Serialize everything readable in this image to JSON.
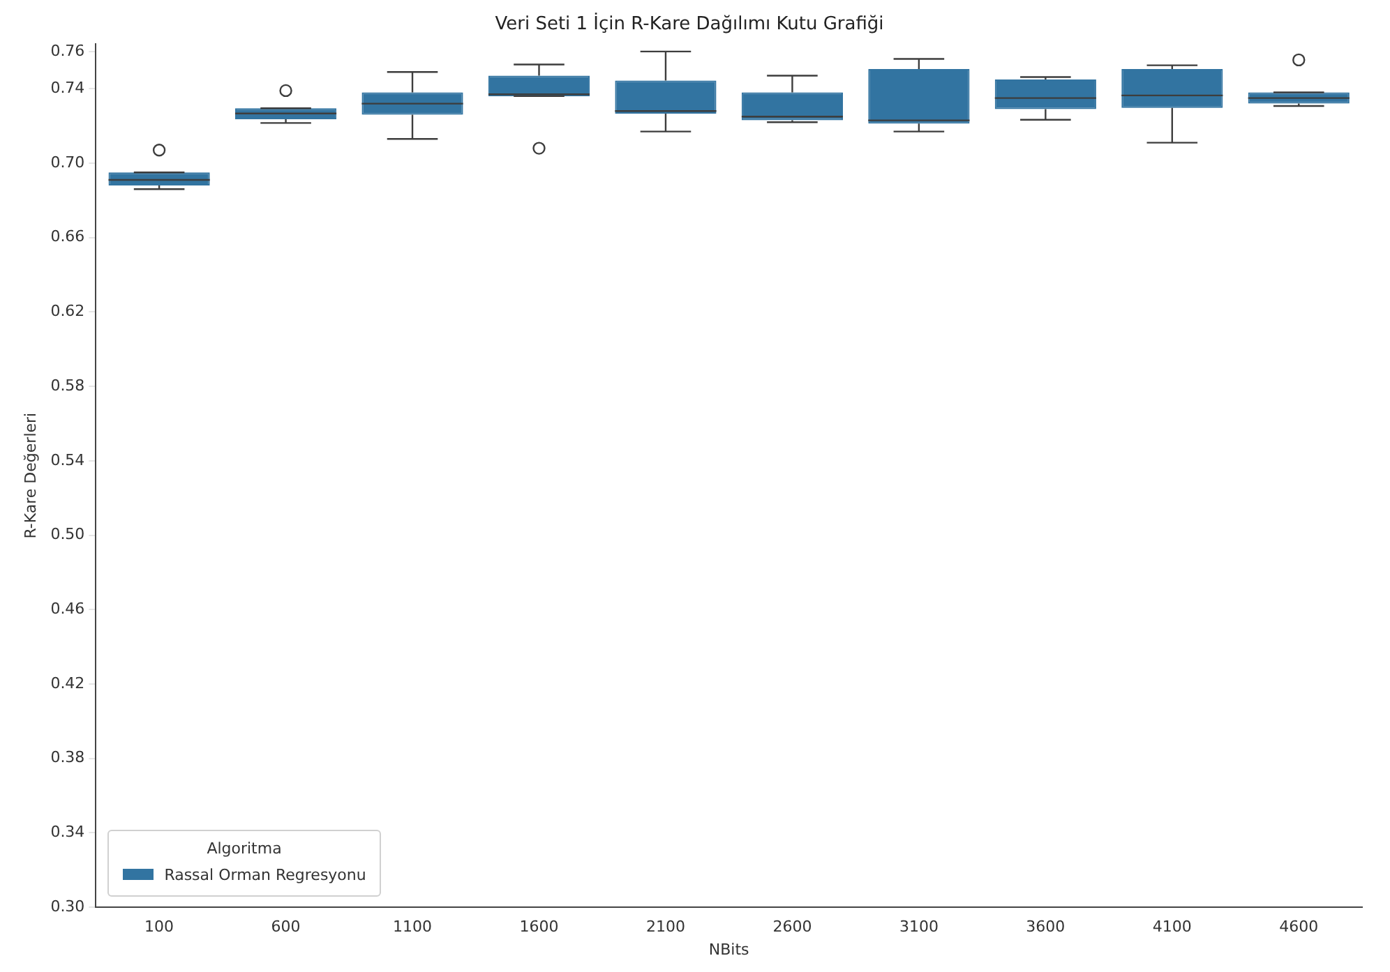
{
  "chart_data": {
    "type": "box",
    "title": "Veri Seti 1 İçin R-Kare Dağılımı Kutu Grafiği",
    "xlabel": "NBits",
    "ylabel": "R-Kare Değerleri",
    "legend_title": "Algoritma",
    "legend": "bottom left",
    "grid": false,
    "categories": [
      "100",
      "600",
      "1100",
      "1600",
      "2100",
      "2600",
      "3100",
      "3600",
      "4100",
      "4600"
    ],
    "ylim": [
      0.3,
      0.764
    ],
    "yticks": [
      {
        "value": 0.3,
        "label": "0.30"
      },
      0.34,
      0.38,
      0.42,
      0.46,
      {
        "value": 0.5,
        "label": "0.50"
      },
      0.54,
      0.58,
      0.62,
      0.66,
      {
        "value": 0.7,
        "label": "0.70"
      },
      0.74,
      0.76
    ],
    "series": [
      {
        "name": "Rassal Orman Regresyonu",
        "color": "#3274a1",
        "boxes": [
          {
            "low": 0.686,
            "q1": 0.688,
            "median": 0.691,
            "q3": 0.695,
            "high": 0.695,
            "outliers": [
              0.707
            ]
          },
          {
            "low": 0.7216,
            "q1": 0.7236,
            "median": 0.7267,
            "q3": 0.7295,
            "high": 0.7295,
            "outliers": [
              0.739
            ]
          },
          {
            "low": 0.713,
            "q1": 0.726,
            "median": 0.732,
            "q3": 0.738,
            "high": 0.749
          },
          {
            "low": 0.736,
            "q1": 0.736,
            "median": 0.737,
            "q3": 0.747,
            "high": 0.753,
            "outliers": [
              0.708
            ]
          },
          {
            "low": 0.717,
            "q1": 0.7266,
            "median": 0.728,
            "q3": 0.7444,
            "high": 0.76
          },
          {
            "low": 0.722,
            "q1": 0.723,
            "median": 0.725,
            "q3": 0.738,
            "high": 0.747
          },
          {
            "low": 0.717,
            "q1": 0.7213,
            "median": 0.723,
            "q3": 0.7506,
            "high": 0.756
          },
          {
            "low": 0.7233,
            "q1": 0.729,
            "median": 0.735,
            "q3": 0.745,
            "high": 0.7463
          },
          {
            "low": 0.711,
            "q1": 0.7297,
            "median": 0.7364,
            "q3": 0.7506,
            "high": 0.7526
          },
          {
            "low": 0.7307,
            "q1": 0.732,
            "median": 0.735,
            "q3": 0.738,
            "high": 0.738,
            "outliers": [
              0.7555
            ]
          }
        ]
      }
    ]
  }
}
